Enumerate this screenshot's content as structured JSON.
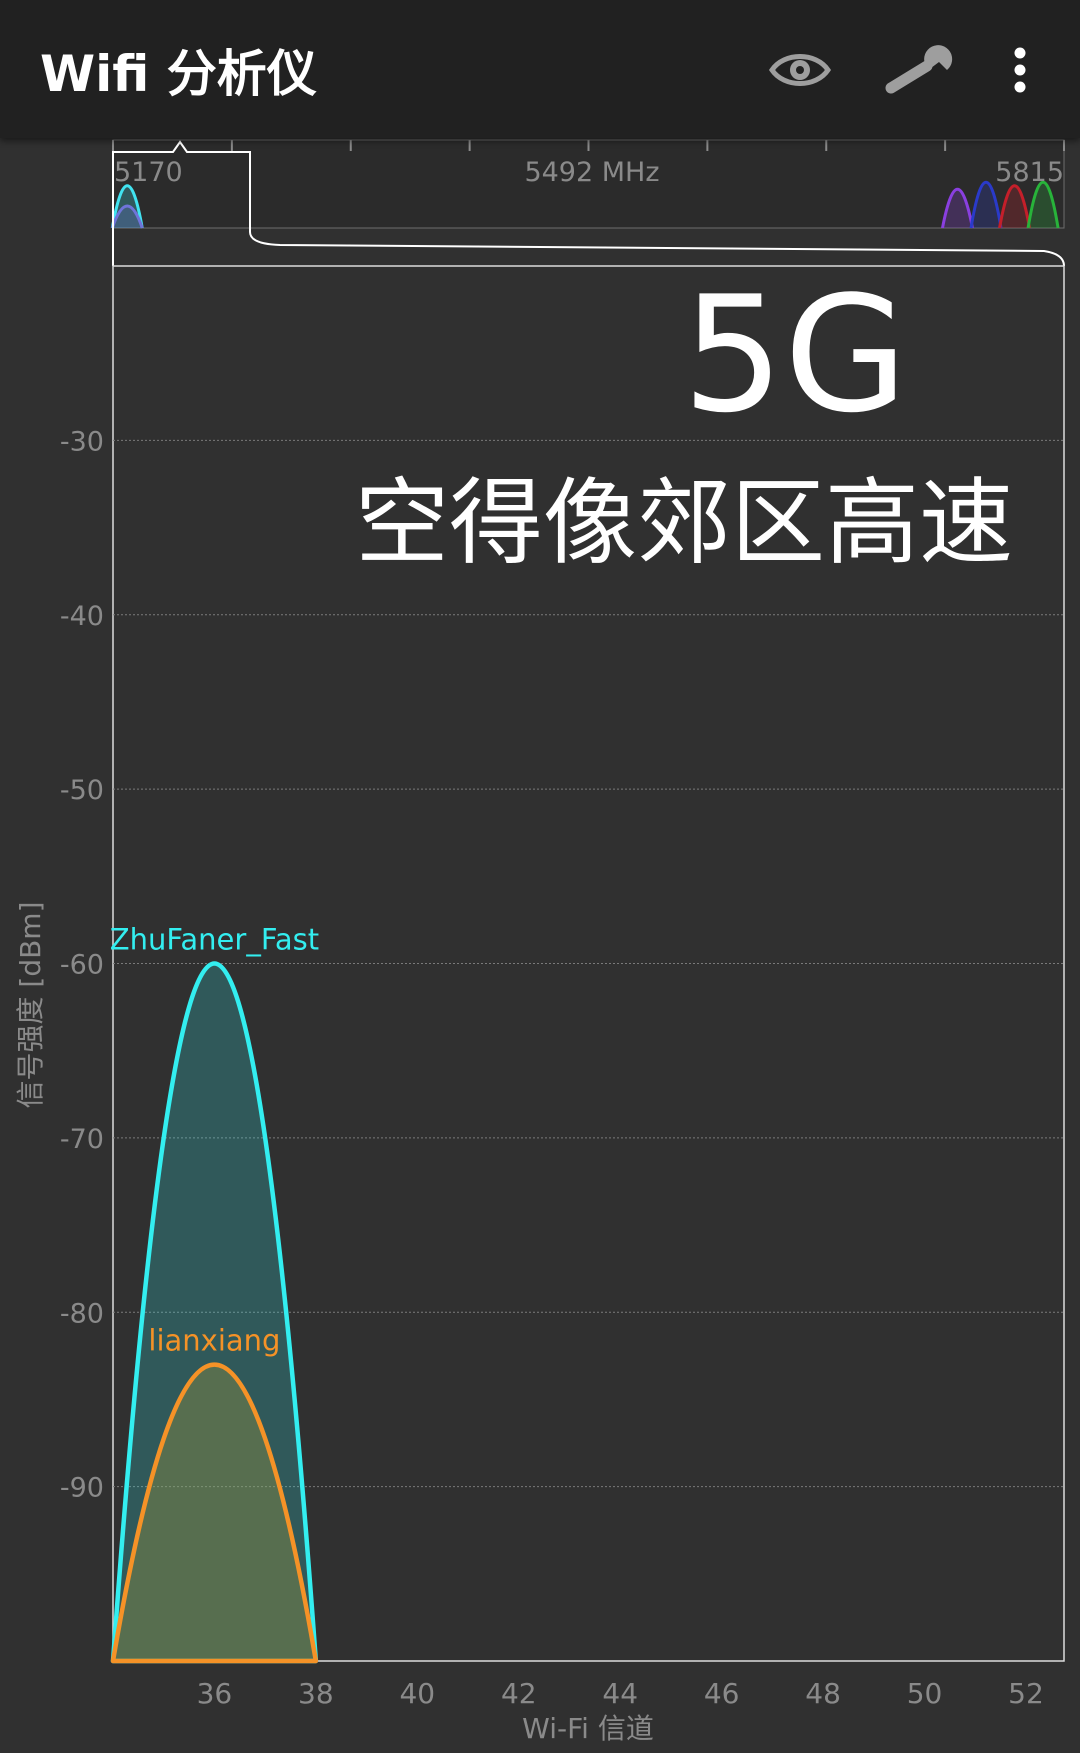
{
  "app": {
    "title": "Wifi 分析仪",
    "icons": [
      "eye-icon",
      "wrench-icon",
      "more-vert-icon"
    ]
  },
  "band_overview": {
    "start_label": "5170",
    "center_label": "5492 MHz",
    "end_label": "5815",
    "mini_curves": [
      {
        "pos": 0.015,
        "color": "#41e3f0",
        "h": 0.48
      },
      {
        "pos": 0.015,
        "color": "#6f74d9",
        "h": 0.25
      },
      {
        "pos": 0.888,
        "color": "#8a3fe0",
        "h": 0.44
      },
      {
        "pos": 0.918,
        "color": "#2a3ac9",
        "h": 0.52
      },
      {
        "pos": 0.948,
        "color": "#c41f2a",
        "h": 0.48
      },
      {
        "pos": 0.978,
        "color": "#28b33a",
        "h": 0.52
      }
    ]
  },
  "overlay": {
    "big": "5G",
    "caption": "空得像郊区高速"
  },
  "colors": {
    "background": "#303030",
    "appbar": "#212121",
    "axis_text": "#8a8a8a",
    "grid": "#7a7a7a"
  },
  "chart_data": {
    "type": "area",
    "title": "",
    "xlabel": "Wi-Fi 信道",
    "ylabel": "信号强度 [dBm]",
    "x_ticks": [
      36,
      38,
      40,
      42,
      44,
      46,
      48,
      50,
      52
    ],
    "xlim": [
      34,
      52.75
    ],
    "y_ticks": [
      -30,
      -40,
      -50,
      -60,
      -70,
      -80,
      -90
    ],
    "ylim": [
      -100,
      -20
    ],
    "grid": true,
    "series": [
      {
        "name": "ZhuFaner_Fast",
        "channel": 36,
        "x_start": 34,
        "x_end": 38,
        "peak": -60,
        "color": "#33eef0",
        "fill": "rgba(51,238,240,0.22)"
      },
      {
        "name": "lianxiang",
        "channel": 36,
        "x_start": 34,
        "x_end": 38,
        "peak": -83,
        "color": "#f59227",
        "fill": "rgba(160,150,60,0.35)"
      }
    ]
  }
}
